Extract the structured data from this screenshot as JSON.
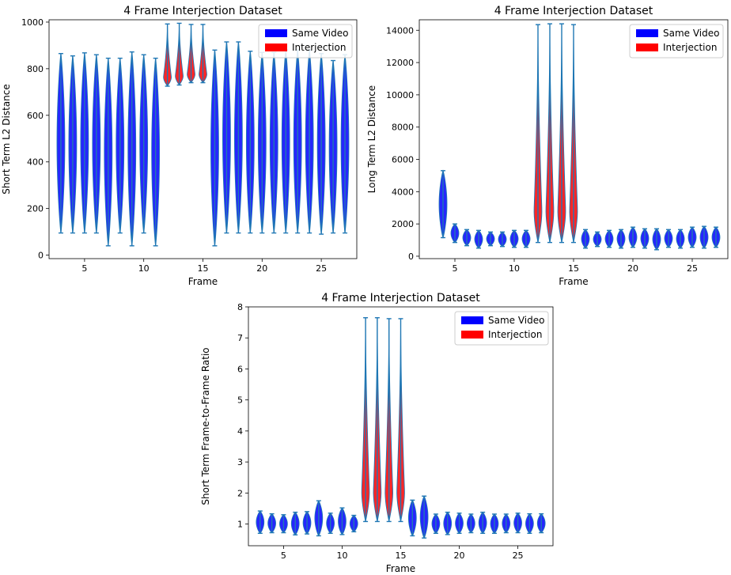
{
  "colors": {
    "same_video": "#0000ff",
    "interjection": "#ff0000",
    "whisker": "#1f77b4"
  },
  "legend": {
    "same_video": "Same Video",
    "interjection": "Interjection"
  },
  "chart_data": [
    {
      "type": "violin",
      "title": "4 Frame Interjection Dataset",
      "xlabel": "Frame",
      "ylabel": "Short Term L2 Distance",
      "xlim": [
        2,
        28
      ],
      "ylim": [
        -15,
        1010
      ],
      "xticks": [
        5,
        10,
        15,
        20,
        25
      ],
      "yticks": [
        0,
        200,
        400,
        600,
        800,
        1000
      ],
      "legend_position": "upper right",
      "violins": [
        {
          "x": 3,
          "min": 95,
          "max": 865,
          "group": "same"
        },
        {
          "x": 4,
          "min": 95,
          "max": 855,
          "group": "same"
        },
        {
          "x": 5,
          "min": 95,
          "max": 868,
          "group": "same"
        },
        {
          "x": 6,
          "min": 95,
          "max": 860,
          "group": "same"
        },
        {
          "x": 7,
          "min": 40,
          "max": 845,
          "group": "same"
        },
        {
          "x": 8,
          "min": 95,
          "max": 845,
          "group": "same"
        },
        {
          "x": 9,
          "min": 40,
          "max": 872,
          "group": "same"
        },
        {
          "x": 10,
          "min": 95,
          "max": 860,
          "group": "same"
        },
        {
          "x": 11,
          "min": 40,
          "max": 845,
          "group": "same"
        },
        {
          "x": 12,
          "min": 725,
          "max": 992,
          "group": "interjection"
        },
        {
          "x": 13,
          "min": 730,
          "max": 995,
          "group": "interjection"
        },
        {
          "x": 14,
          "min": 740,
          "max": 990,
          "group": "interjection"
        },
        {
          "x": 15,
          "min": 740,
          "max": 990,
          "group": "interjection"
        },
        {
          "x": 16,
          "min": 40,
          "max": 880,
          "group": "same"
        },
        {
          "x": 17,
          "min": 95,
          "max": 915,
          "group": "same"
        },
        {
          "x": 18,
          "min": 95,
          "max": 915,
          "group": "same"
        },
        {
          "x": 19,
          "min": 95,
          "max": 875,
          "group": "same"
        },
        {
          "x": 20,
          "min": 95,
          "max": 870,
          "group": "same"
        },
        {
          "x": 21,
          "min": 95,
          "max": 870,
          "group": "same"
        },
        {
          "x": 22,
          "min": 95,
          "max": 880,
          "group": "same"
        },
        {
          "x": 23,
          "min": 95,
          "max": 880,
          "group": "same"
        },
        {
          "x": 24,
          "min": 95,
          "max": 880,
          "group": "same"
        },
        {
          "x": 25,
          "min": 90,
          "max": 865,
          "group": "same"
        },
        {
          "x": 26,
          "min": 95,
          "max": 835,
          "group": "same"
        },
        {
          "x": 27,
          "min": 95,
          "max": 860,
          "group": "same"
        }
      ]
    },
    {
      "type": "violin",
      "title": "4 Frame Interjection Dataset",
      "xlabel": "Frame",
      "ylabel": "Long Term L2 Distance",
      "xlim": [
        2,
        28
      ],
      "ylim": [
        -150,
        14650
      ],
      "xticks": [
        5,
        10,
        15,
        20,
        25
      ],
      "yticks": [
        0,
        2000,
        4000,
        6000,
        8000,
        10000,
        12000,
        14000
      ],
      "legend_position": "upper right",
      "violins": [
        {
          "x": 4,
          "min": 1150,
          "max": 5300,
          "group": "same"
        },
        {
          "x": 5,
          "min": 850,
          "max": 2000,
          "group": "same"
        },
        {
          "x": 6,
          "min": 650,
          "max": 1650,
          "group": "same"
        },
        {
          "x": 7,
          "min": 500,
          "max": 1600,
          "group": "same"
        },
        {
          "x": 8,
          "min": 650,
          "max": 1500,
          "group": "same"
        },
        {
          "x": 9,
          "min": 600,
          "max": 1500,
          "group": "same"
        },
        {
          "x": 10,
          "min": 550,
          "max": 1600,
          "group": "same"
        },
        {
          "x": 11,
          "min": 550,
          "max": 1600,
          "group": "same"
        },
        {
          "x": 12,
          "min": 850,
          "max": 14350,
          "group": "interjection"
        },
        {
          "x": 13,
          "min": 850,
          "max": 14400,
          "group": "interjection"
        },
        {
          "x": 14,
          "min": 850,
          "max": 14400,
          "group": "interjection"
        },
        {
          "x": 15,
          "min": 850,
          "max": 14350,
          "group": "interjection"
        },
        {
          "x": 16,
          "min": 500,
          "max": 1650,
          "group": "same"
        },
        {
          "x": 17,
          "min": 600,
          "max": 1500,
          "group": "same"
        },
        {
          "x": 18,
          "min": 550,
          "max": 1600,
          "group": "same"
        },
        {
          "x": 19,
          "min": 500,
          "max": 1650,
          "group": "same"
        },
        {
          "x": 20,
          "min": 550,
          "max": 1800,
          "group": "same"
        },
        {
          "x": 21,
          "min": 500,
          "max": 1700,
          "group": "same"
        },
        {
          "x": 22,
          "min": 400,
          "max": 1700,
          "group": "same"
        },
        {
          "x": 23,
          "min": 550,
          "max": 1650,
          "group": "same"
        },
        {
          "x": 24,
          "min": 500,
          "max": 1650,
          "group": "same"
        },
        {
          "x": 25,
          "min": 550,
          "max": 1800,
          "group": "same"
        },
        {
          "x": 26,
          "min": 500,
          "max": 1850,
          "group": "same"
        },
        {
          "x": 27,
          "min": 550,
          "max": 1800,
          "group": "same"
        }
      ]
    },
    {
      "type": "violin",
      "title": "4 Frame Interjection Dataset",
      "xlabel": "Frame",
      "ylabel": "Short Term Frame-to-Frame Ratio",
      "xlim": [
        2,
        28
      ],
      "ylim": [
        0.3,
        8.0
      ],
      "xticks": [
        5,
        10,
        15,
        20,
        25
      ],
      "yticks": [
        1,
        2,
        3,
        4,
        5,
        6,
        7,
        8
      ],
      "legend_position": "upper right",
      "violins": [
        {
          "x": 3,
          "min": 0.7,
          "max": 1.42,
          "group": "same"
        },
        {
          "x": 4,
          "min": 0.72,
          "max": 1.33,
          "group": "same"
        },
        {
          "x": 5,
          "min": 0.72,
          "max": 1.3,
          "group": "same"
        },
        {
          "x": 6,
          "min": 0.65,
          "max": 1.38,
          "group": "same"
        },
        {
          "x": 7,
          "min": 0.68,
          "max": 1.4,
          "group": "same"
        },
        {
          "x": 8,
          "min": 0.62,
          "max": 1.75,
          "group": "same"
        },
        {
          "x": 9,
          "min": 0.7,
          "max": 1.35,
          "group": "same"
        },
        {
          "x": 10,
          "min": 0.66,
          "max": 1.52,
          "group": "same"
        },
        {
          "x": 11,
          "min": 0.75,
          "max": 1.28,
          "group": "same"
        },
        {
          "x": 12,
          "min": 1.08,
          "max": 7.65,
          "group": "interjection"
        },
        {
          "x": 13,
          "min": 1.08,
          "max": 7.65,
          "group": "interjection"
        },
        {
          "x": 14,
          "min": 1.08,
          "max": 7.62,
          "group": "interjection"
        },
        {
          "x": 15,
          "min": 1.08,
          "max": 7.62,
          "group": "interjection"
        },
        {
          "x": 16,
          "min": 0.62,
          "max": 1.77,
          "group": "same"
        },
        {
          "x": 17,
          "min": 0.55,
          "max": 1.9,
          "group": "same"
        },
        {
          "x": 18,
          "min": 0.7,
          "max": 1.32,
          "group": "same"
        },
        {
          "x": 19,
          "min": 0.66,
          "max": 1.38,
          "group": "same"
        },
        {
          "x": 20,
          "min": 0.7,
          "max": 1.35,
          "group": "same"
        },
        {
          "x": 21,
          "min": 0.72,
          "max": 1.32,
          "group": "same"
        },
        {
          "x": 22,
          "min": 0.7,
          "max": 1.38,
          "group": "same"
        },
        {
          "x": 23,
          "min": 0.7,
          "max": 1.32,
          "group": "same"
        },
        {
          "x": 24,
          "min": 0.72,
          "max": 1.32,
          "group": "same"
        },
        {
          "x": 25,
          "min": 0.72,
          "max": 1.35,
          "group": "same"
        },
        {
          "x": 26,
          "min": 0.7,
          "max": 1.33,
          "group": "same"
        },
        {
          "x": 27,
          "min": 0.72,
          "max": 1.33,
          "group": "same"
        }
      ]
    }
  ]
}
